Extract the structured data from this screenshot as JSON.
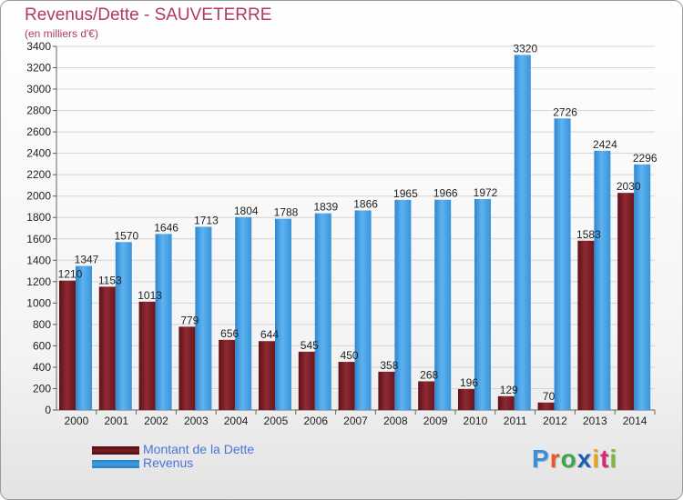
{
  "colors": {
    "dette": "#7a1c24",
    "revenus": "#3f9ee3",
    "title": "#b03a5e",
    "legend_text": "#4a73d9"
  },
  "logo": {
    "text": "Proxiti",
    "letters": [
      "P",
      "r",
      "o",
      "x",
      "i",
      "t",
      "i"
    ],
    "letter_colors": [
      "#3b8fd6",
      "#e8562a",
      "#3aa84a",
      "#1e5fb3",
      "#e6a41c",
      "#d8287a",
      "#7bb93c"
    ]
  },
  "chart_data": {
    "type": "bar",
    "title": "Revenus/Dette - SAUVETERRE",
    "subtitle": "(en milliers d'€)",
    "categories": [
      "2000",
      "2001",
      "2002",
      "2003",
      "2004",
      "2005",
      "2006",
      "2007",
      "2008",
      "2009",
      "2010",
      "2011",
      "2012",
      "2013",
      "2014"
    ],
    "series": [
      {
        "name": "Montant de la Dette",
        "values": [
          1210,
          1153,
          1013,
          779,
          656,
          644,
          545,
          450,
          358,
          268,
          196,
          129,
          70,
          1583,
          2030
        ],
        "labels": [
          "1210",
          "1153",
          "1013",
          "779",
          "656",
          "644",
          "545",
          "450",
          "358",
          "268",
          "196",
          "129",
          "70",
          "1583",
          "2030"
        ]
      },
      {
        "name": "Revenus",
        "values": [
          1347,
          1570,
          1646,
          1713,
          1804,
          1788,
          1839,
          1866,
          1965,
          1966,
          1972,
          3320,
          2726,
          2424,
          2296
        ],
        "labels": [
          "1347",
          "1570",
          "1646",
          "1713",
          "1804",
          "1788",
          "1839",
          "1866",
          "1965",
          "1966",
          "1972",
          "3320",
          "2726",
          "2424",
          "2296"
        ]
      }
    ],
    "ylim": [
      0,
      3400
    ],
    "yticks": [
      "0",
      "200",
      "400",
      "600",
      "800",
      "1000",
      "1200",
      "1400",
      "1600",
      "1800",
      "2000",
      "2200",
      "2400",
      "2600",
      "2800",
      "3000",
      "3200",
      "3400"
    ],
    "grid": true,
    "legend": "bottom-left"
  }
}
